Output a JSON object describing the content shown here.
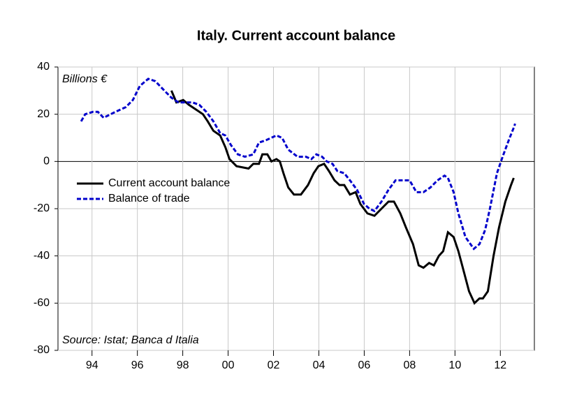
{
  "chart_data": {
    "type": "line",
    "title": "Italy. Current account balance",
    "annotations": [
      "Billions €",
      "Source: Istat; Banca d Italia"
    ],
    "xlim": [
      1992.5,
      2013.5
    ],
    "xticks": [
      {
        "value": 1994,
        "label": "94"
      },
      {
        "value": 1996,
        "label": "96"
      },
      {
        "value": 1998,
        "label": "98"
      },
      {
        "value": 2000,
        "label": "00"
      },
      {
        "value": 2002,
        "label": "02"
      },
      {
        "value": 2004,
        "label": "04"
      },
      {
        "value": 2006,
        "label": "06"
      },
      {
        "value": 2008,
        "label": "08"
      },
      {
        "value": 2010,
        "label": "10"
      },
      {
        "value": 2012,
        "label": "12"
      }
    ],
    "ylim": [
      -80,
      40
    ],
    "yticks": [
      -80,
      -60,
      -40,
      -20,
      0,
      20,
      40
    ],
    "grid": true,
    "legend": "left",
    "series": [
      {
        "name": "Current account balance",
        "color": "#000000",
        "dash": false,
        "x": [
          1997.5,
          1997.72,
          1998.02,
          1998.27,
          1998.58,
          1998.89,
          1999.1,
          1999.35,
          1999.65,
          1999.88,
          2000.06,
          2000.37,
          2000.9,
          2001.11,
          2001.36,
          2001.51,
          2001.73,
          2001.91,
          2002.13,
          2002.28,
          2002.44,
          2002.65,
          2002.9,
          2003.21,
          2003.52,
          2003.77,
          2003.98,
          2004.23,
          2004.44,
          2004.69,
          2004.91,
          2005.12,
          2005.37,
          2005.62,
          2005.83,
          2006.14,
          2006.45,
          2006.76,
          2007.07,
          2007.31,
          2007.59,
          2007.84,
          2008.15,
          2008.4,
          2008.61,
          2008.86,
          2009.07,
          2009.29,
          2009.48,
          2009.69,
          2009.94,
          2010.15,
          2010.4,
          2010.62,
          2010.86,
          2011.08,
          2011.23,
          2011.45,
          2011.7,
          2011.94,
          2012.22,
          2012.47,
          2012.59
        ],
        "values": [
          30,
          25,
          26,
          24,
          22,
          20,
          17,
          13,
          11,
          6,
          1,
          -2,
          -3,
          -1,
          -1,
          3,
          3,
          0,
          1,
          0,
          -5,
          -11,
          -14,
          -14,
          -10,
          -5,
          -2,
          -1,
          -4,
          -8,
          -10,
          -10,
          -14,
          -13,
          -18,
          -22,
          -23,
          -20,
          -17,
          -17,
          -22,
          -28,
          -35,
          -44,
          -45,
          -43,
          -44,
          -40,
          -38,
          -30,
          -32,
          -38,
          -47,
          -55,
          -60,
          -58,
          -58,
          -55,
          -40,
          -28,
          -17,
          -10,
          -7
        ]
      },
      {
        "name": "Balance of trade",
        "color": "#0000cc",
        "dash": true,
        "x": [
          1993.52,
          1993.7,
          1994.04,
          1994.26,
          1994.51,
          1995.03,
          1995.49,
          1995.8,
          1996.11,
          1996.48,
          1996.79,
          1997.19,
          1997.5,
          1997.81,
          1998.43,
          1998.73,
          1999.04,
          1999.35,
          1999.65,
          1999.88,
          2000.12,
          2000.43,
          2000.74,
          2001.11,
          2001.36,
          2001.67,
          2002.13,
          2002.38,
          2002.65,
          2003.06,
          2003.43,
          2003.67,
          2003.89,
          2004.14,
          2004.35,
          2004.6,
          2004.81,
          2005.12,
          2005.37,
          2005.68,
          2005.99,
          2006.23,
          2006.45,
          2006.76,
          2007.07,
          2007.38,
          2007.69,
          2008.0,
          2008.3,
          2008.61,
          2008.92,
          2009.23,
          2009.54,
          2009.69,
          2009.94,
          2010.15,
          2010.46,
          2010.83,
          2011.08,
          2011.33,
          2011.54,
          2011.85,
          2012.1,
          2012.41,
          2012.62,
          2012.65
        ],
        "values": [
          17,
          20,
          21,
          21,
          18.5,
          21,
          23,
          26,
          32,
          35,
          34,
          30,
          27,
          25,
          25,
          24,
          21,
          17,
          12,
          11,
          7,
          3,
          2,
          3,
          8,
          9,
          11,
          10,
          5,
          2,
          2,
          1,
          3,
          2,
          0,
          -1,
          -4,
          -5,
          -8,
          -12,
          -18,
          -20,
          -21,
          -17,
          -12,
          -8,
          -8,
          -8,
          -13,
          -13,
          -11,
          -8,
          -6,
          -7,
          -13,
          -22,
          -32,
          -37,
          -35,
          -29,
          -20,
          -5,
          2,
          10,
          15,
          16
        ]
      }
    ]
  }
}
